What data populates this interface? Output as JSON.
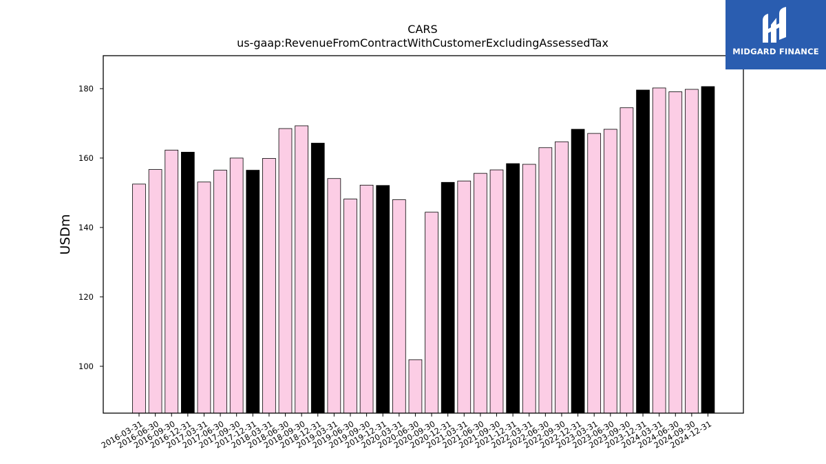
{
  "brand": {
    "name": "MIDGARD FINANCE",
    "logo_icon": "midgard-logo-icon",
    "background_color": "#2a5db0"
  },
  "chart_data": {
    "type": "bar",
    "title": "CARS",
    "subtitle": "us-gaap:RevenueFromContractWithCustomerExcludingAssessedTax",
    "xlabel": "",
    "ylabel": "USDm",
    "ylim": [
      86.5,
      189.5
    ],
    "yticks": [
      100,
      120,
      140,
      160,
      180
    ],
    "grid": false,
    "colors": {
      "quarter": "#fccde5",
      "year_end": "#000000",
      "edge": "#000000"
    },
    "categories": [
      "2016-03-31",
      "2016-06-30",
      "2016-09-30",
      "2016-12-31",
      "2017-03-31",
      "2017-06-30",
      "2017-09-30",
      "2017-12-31",
      "2018-03-31",
      "2018-06-30",
      "2018-09-30",
      "2018-12-31",
      "2019-03-31",
      "2019-06-30",
      "2019-09-30",
      "2019-12-31",
      "2020-03-31",
      "2020-06-30",
      "2020-09-30",
      "2020-12-31",
      "2021-03-31",
      "2021-06-30",
      "2021-09-30",
      "2021-12-31",
      "2022-03-31",
      "2022-06-30",
      "2022-09-30",
      "2022-12-31",
      "2023-03-31",
      "2023-06-30",
      "2023-09-30",
      "2023-12-31",
      "2024-03-31",
      "2024-06-30",
      "2024-09-30",
      "2024-12-31"
    ],
    "values": [
      152.5,
      156.7,
      162.3,
      161.7,
      153.1,
      156.5,
      160.0,
      156.5,
      159.9,
      168.5,
      169.3,
      164.3,
      154.1,
      148.2,
      152.2,
      152.1,
      148.0,
      101.9,
      144.4,
      153.0,
      153.4,
      155.6,
      156.6,
      158.4,
      158.2,
      163.0,
      164.7,
      168.3,
      167.1,
      168.3,
      174.5,
      179.6,
      180.2,
      179.1,
      179.8,
      180.6
    ],
    "year_end_flags": [
      false,
      false,
      false,
      true,
      false,
      false,
      false,
      true,
      false,
      false,
      false,
      true,
      false,
      false,
      false,
      true,
      false,
      false,
      false,
      true,
      false,
      false,
      false,
      true,
      false,
      false,
      false,
      true,
      false,
      false,
      false,
      true,
      false,
      false,
      false,
      true
    ]
  }
}
